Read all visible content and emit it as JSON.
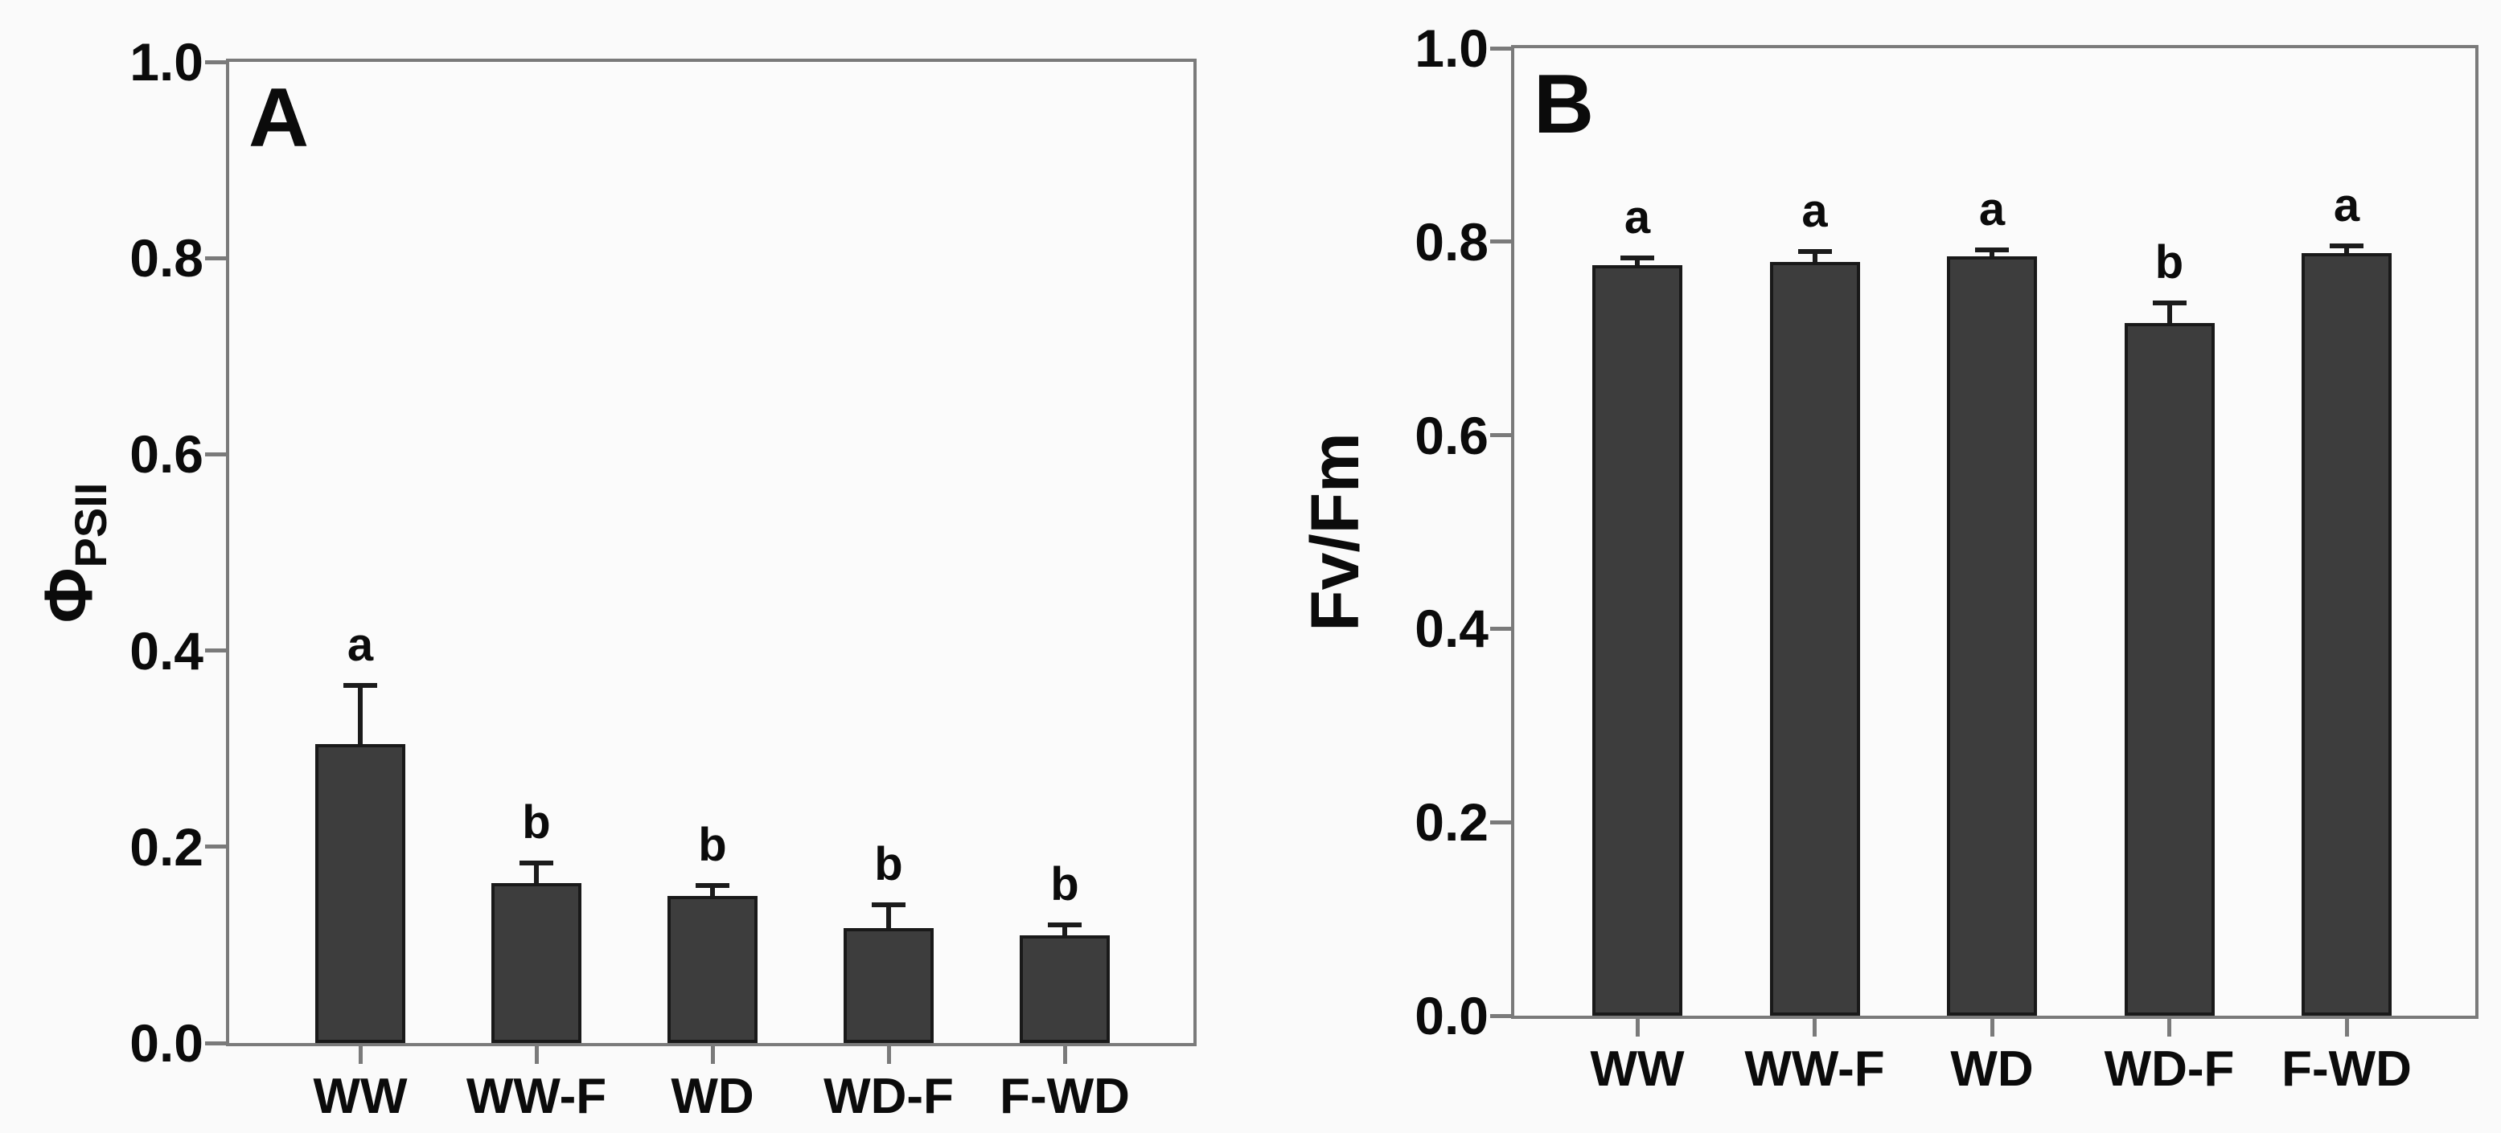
{
  "figure": {
    "background_color": "#fafafa",
    "bar_color": "#3d3d3d",
    "bar_border_color": "#191919",
    "axis_color": "#7a7a7a",
    "error_bar_color": "#1b1b1b",
    "text_color": "#0b0b0b"
  },
  "chart_data": [
    {
      "type": "bar",
      "panel_label": "A",
      "ylabel": "Φ_PSII",
      "ylabel_main": "Φ",
      "ylabel_sub": "PSII",
      "xlabel": "",
      "categories": [
        "WW",
        "WW-F",
        "WD",
        "WD-F",
        "F-WD"
      ],
      "values": [
        0.305,
        0.163,
        0.15,
        0.117,
        0.11
      ],
      "errors_up": [
        0.062,
        0.023,
        0.013,
        0.026,
        0.013
      ],
      "sig_letters": [
        "a",
        "b",
        "b",
        "b",
        "b"
      ],
      "ylim": [
        0.0,
        1.0
      ],
      "yticks": [
        "0.0",
        "0.2",
        "0.4",
        "0.6",
        "0.8",
        "1.0"
      ],
      "grid": "off",
      "legend": "none"
    },
    {
      "type": "bar",
      "panel_label": "B",
      "ylabel": "Fv/Fm",
      "ylabel_main": "Fv/Fm",
      "ylabel_sub": "",
      "xlabel": "",
      "categories": [
        "WW",
        "WW-F",
        "WD",
        "WD-F",
        "F-WD"
      ],
      "values": [
        0.776,
        0.779,
        0.785,
        0.716,
        0.788
      ],
      "errors_up": [
        0.01,
        0.013,
        0.009,
        0.023,
        0.01
      ],
      "sig_letters": [
        "a",
        "a",
        "a",
        "b",
        "a"
      ],
      "ylim": [
        0.0,
        1.0
      ],
      "yticks": [
        "0.0",
        "0.2",
        "0.4",
        "0.6",
        "0.8",
        "1.0"
      ],
      "grid": "off",
      "legend": "none"
    }
  ]
}
